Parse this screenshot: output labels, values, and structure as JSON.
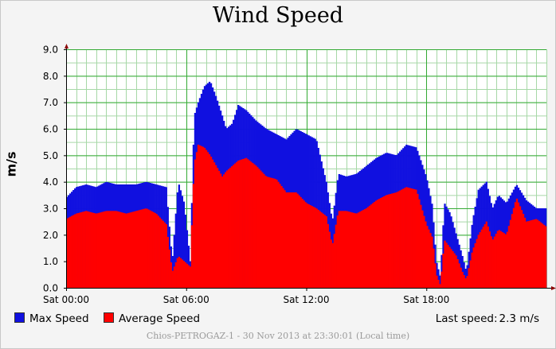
{
  "title": "Wind Speed",
  "footer": "Chios-PETROGAZ-1 - 30 Nov 2013 at 23:30:01 (Local time)",
  "legend": {
    "max_label": "Max Speed",
    "avg_label": "Average Speed",
    "last_label": "Last speed:",
    "last_value": "2.3 m/s"
  },
  "colors": {
    "max": "#1010e0",
    "avg": "#ff0000",
    "grid_major": "#33aa33",
    "grid_minor": "#a6d8a6",
    "plot_bg": "#ffffff"
  },
  "chart_data": {
    "type": "area",
    "title": "Wind Speed",
    "xlabel": "",
    "ylabel": "m/s",
    "ylim": [
      0,
      9
    ],
    "yticks": [
      "0.0",
      "1.0",
      "2.0",
      "3.0",
      "4.0",
      "5.0",
      "6.0",
      "7.0",
      "8.0",
      "9.0"
    ],
    "xlim": [
      0,
      24
    ],
    "xticks": [
      {
        "value": 0,
        "label": "Sat 00:00"
      },
      {
        "value": 6,
        "label": "Sat 06:00"
      },
      {
        "value": 12,
        "label": "Sat 12:00"
      },
      {
        "value": 18,
        "label": "Sat 18:00"
      }
    ],
    "x_unit": "hours",
    "grid": true,
    "legend_position": "bottom-left",
    "series": [
      {
        "name": "Max Speed",
        "x": [
          0,
          0.5,
          1,
          1.5,
          2,
          2.5,
          3,
          3.5,
          4,
          4.5,
          5,
          5.3,
          5.6,
          5.9,
          6.2,
          6.4,
          6.6,
          6.9,
          7.2,
          7.5,
          7.8,
          8.0,
          8.3,
          8.6,
          9,
          9.5,
          10,
          10.5,
          11,
          11.5,
          12,
          12.5,
          13,
          13.3,
          13.6,
          14,
          14.5,
          15,
          15.5,
          16,
          16.5,
          17,
          17.5,
          18,
          18.3,
          18.5,
          18.7,
          18.9,
          19.2,
          19.5,
          19.8,
          20,
          20.3,
          20.6,
          21,
          21.3,
          21.6,
          22,
          22.5,
          23,
          23.5,
          24
        ],
        "y": [
          3.4,
          3.8,
          3.9,
          3.8,
          4.0,
          3.9,
          3.9,
          3.9,
          4.0,
          3.9,
          3.8,
          1.0,
          4.0,
          3.2,
          1.0,
          6.5,
          7.0,
          7.6,
          7.8,
          7.2,
          6.5,
          6.0,
          6.2,
          6.9,
          6.7,
          6.3,
          6.0,
          5.8,
          5.6,
          6.0,
          5.8,
          5.6,
          4.0,
          2.5,
          4.3,
          4.2,
          4.3,
          4.6,
          4.9,
          5.1,
          5.0,
          5.4,
          5.3,
          4.2,
          3.1,
          1.0,
          0.4,
          3.2,
          2.8,
          2.0,
          1.2,
          0.6,
          2.5,
          3.7,
          4.0,
          3.0,
          3.5,
          3.2,
          3.9,
          3.3,
          3.0,
          3.0
        ]
      },
      {
        "name": "Average Speed",
        "x": [
          0,
          0.5,
          1,
          1.5,
          2,
          2.5,
          3,
          3.5,
          4,
          4.5,
          5,
          5.3,
          5.6,
          5.9,
          6.2,
          6.4,
          6.6,
          6.9,
          7.2,
          7.5,
          7.8,
          8.0,
          8.3,
          8.6,
          9,
          9.5,
          10,
          10.5,
          11,
          11.5,
          12,
          12.5,
          13,
          13.3,
          13.6,
          14,
          14.5,
          15,
          15.5,
          16,
          16.5,
          17,
          17.5,
          18,
          18.3,
          18.5,
          18.7,
          18.9,
          19.2,
          19.5,
          19.8,
          20,
          20.3,
          20.6,
          21,
          21.3,
          21.6,
          22,
          22.5,
          23,
          23.5,
          24
        ],
        "y": [
          2.6,
          2.8,
          2.9,
          2.8,
          2.9,
          2.9,
          2.8,
          2.9,
          3.0,
          2.8,
          2.4,
          0.6,
          1.2,
          1.0,
          0.8,
          4.7,
          5.4,
          5.3,
          5.0,
          4.6,
          4.2,
          4.4,
          4.6,
          4.8,
          4.9,
          4.6,
          4.2,
          4.1,
          3.6,
          3.6,
          3.2,
          3.0,
          2.7,
          1.6,
          2.9,
          2.9,
          2.8,
          3.0,
          3.3,
          3.5,
          3.6,
          3.8,
          3.7,
          2.4,
          1.9,
          0.5,
          0.1,
          1.8,
          1.5,
          1.2,
          0.6,
          0.3,
          1.4,
          2.0,
          2.5,
          1.8,
          2.2,
          2.0,
          3.4,
          2.5,
          2.6,
          2.3
        ]
      }
    ]
  }
}
